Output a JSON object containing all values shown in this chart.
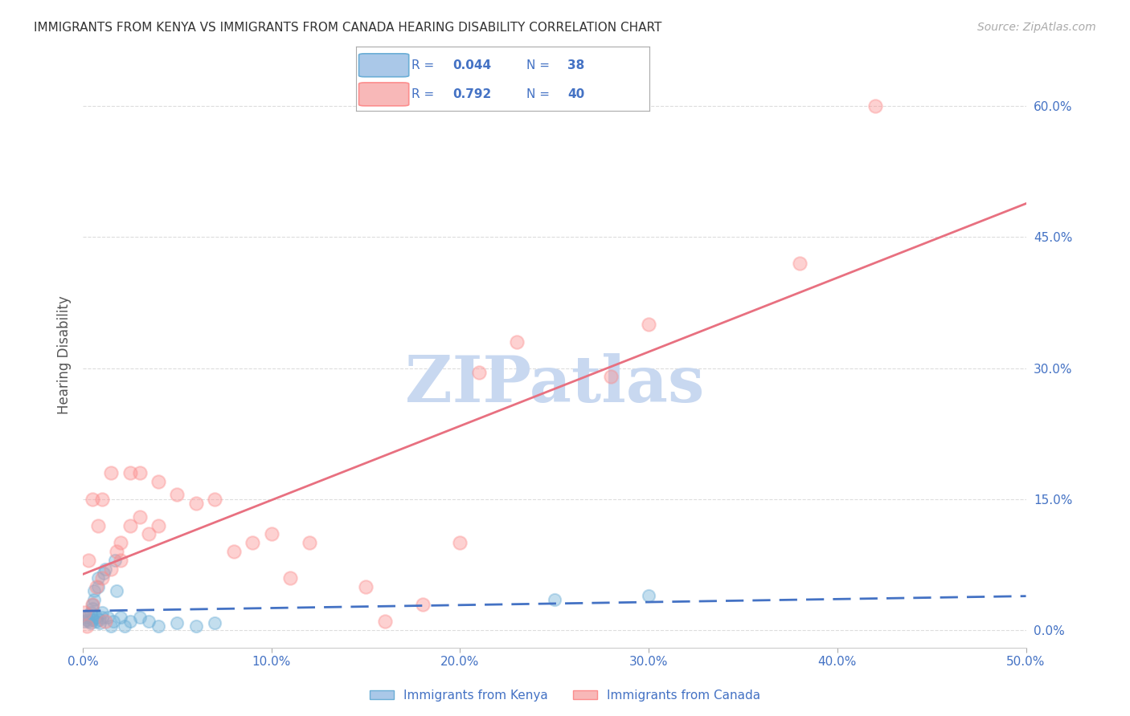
{
  "title": "IMMIGRANTS FROM KENYA VS IMMIGRANTS FROM CANADA HEARING DISABILITY CORRELATION CHART",
  "source_text": "Source: ZipAtlas.com",
  "xlabel": "",
  "ylabel": "Hearing Disability",
  "xlim": [
    0.0,
    0.5
  ],
  "ylim": [
    -0.02,
    0.65
  ],
  "xticks": [
    0.0,
    0.1,
    0.2,
    0.3,
    0.4,
    0.5
  ],
  "xtick_labels": [
    "0.0%",
    "10.0%",
    "20.0%",
    "30.0%",
    "40.0%",
    "50.0%"
  ],
  "yticks": [
    0.0,
    0.15,
    0.3,
    0.45,
    0.6
  ],
  "ytick_labels": [
    "0.0%",
    "15.0%",
    "30.0%",
    "45.0%",
    "60.0%"
  ],
  "kenya_color": "#6baed6",
  "canada_color": "#fc8d8d",
  "kenya_line_color": "#4472c4",
  "canada_line_color": "#e87080",
  "kenya_R": 0.044,
  "kenya_N": 38,
  "canada_R": 0.792,
  "canada_N": 40,
  "kenya_x": [
    0.001,
    0.002,
    0.002,
    0.003,
    0.003,
    0.004,
    0.004,
    0.005,
    0.005,
    0.005,
    0.006,
    0.006,
    0.007,
    0.007,
    0.008,
    0.008,
    0.009,
    0.009,
    0.01,
    0.01,
    0.011,
    0.012,
    0.013,
    0.015,
    0.016,
    0.017,
    0.018,
    0.02,
    0.022,
    0.025,
    0.03,
    0.035,
    0.04,
    0.05,
    0.06,
    0.07,
    0.25,
    0.3
  ],
  "kenya_y": [
    0.01,
    0.012,
    0.015,
    0.01,
    0.018,
    0.008,
    0.02,
    0.012,
    0.025,
    0.03,
    0.035,
    0.045,
    0.01,
    0.015,
    0.05,
    0.06,
    0.008,
    0.012,
    0.015,
    0.02,
    0.065,
    0.07,
    0.015,
    0.005,
    0.01,
    0.08,
    0.045,
    0.015,
    0.005,
    0.01,
    0.015,
    0.01,
    0.005,
    0.008,
    0.005,
    0.008,
    0.035,
    0.04
  ],
  "canada_x": [
    0.001,
    0.002,
    0.003,
    0.005,
    0.005,
    0.007,
    0.008,
    0.01,
    0.01,
    0.012,
    0.015,
    0.015,
    0.018,
    0.02,
    0.02,
    0.025,
    0.025,
    0.03,
    0.03,
    0.035,
    0.04,
    0.04,
    0.05,
    0.06,
    0.07,
    0.08,
    0.09,
    0.1,
    0.11,
    0.12,
    0.15,
    0.16,
    0.18,
    0.2,
    0.21,
    0.23,
    0.28,
    0.3,
    0.38,
    0.42
  ],
  "canada_y": [
    0.02,
    0.005,
    0.08,
    0.03,
    0.15,
    0.05,
    0.12,
    0.06,
    0.15,
    0.01,
    0.07,
    0.18,
    0.09,
    0.08,
    0.1,
    0.12,
    0.18,
    0.13,
    0.18,
    0.11,
    0.12,
    0.17,
    0.155,
    0.145,
    0.15,
    0.09,
    0.1,
    0.11,
    0.06,
    0.1,
    0.05,
    0.01,
    0.03,
    0.1,
    0.295,
    0.33,
    0.29,
    0.35,
    0.42,
    0.6
  ],
  "watermark": "ZIPatlas",
  "watermark_color": "#c8d8f0",
  "background_color": "#ffffff",
  "grid_color": "#dddddd",
  "title_fontsize": 11,
  "tick_label_color": "#4472c4",
  "legend_kenya_label": "Immigrants from Kenya",
  "legend_canada_label": "Immigrants from Canada"
}
